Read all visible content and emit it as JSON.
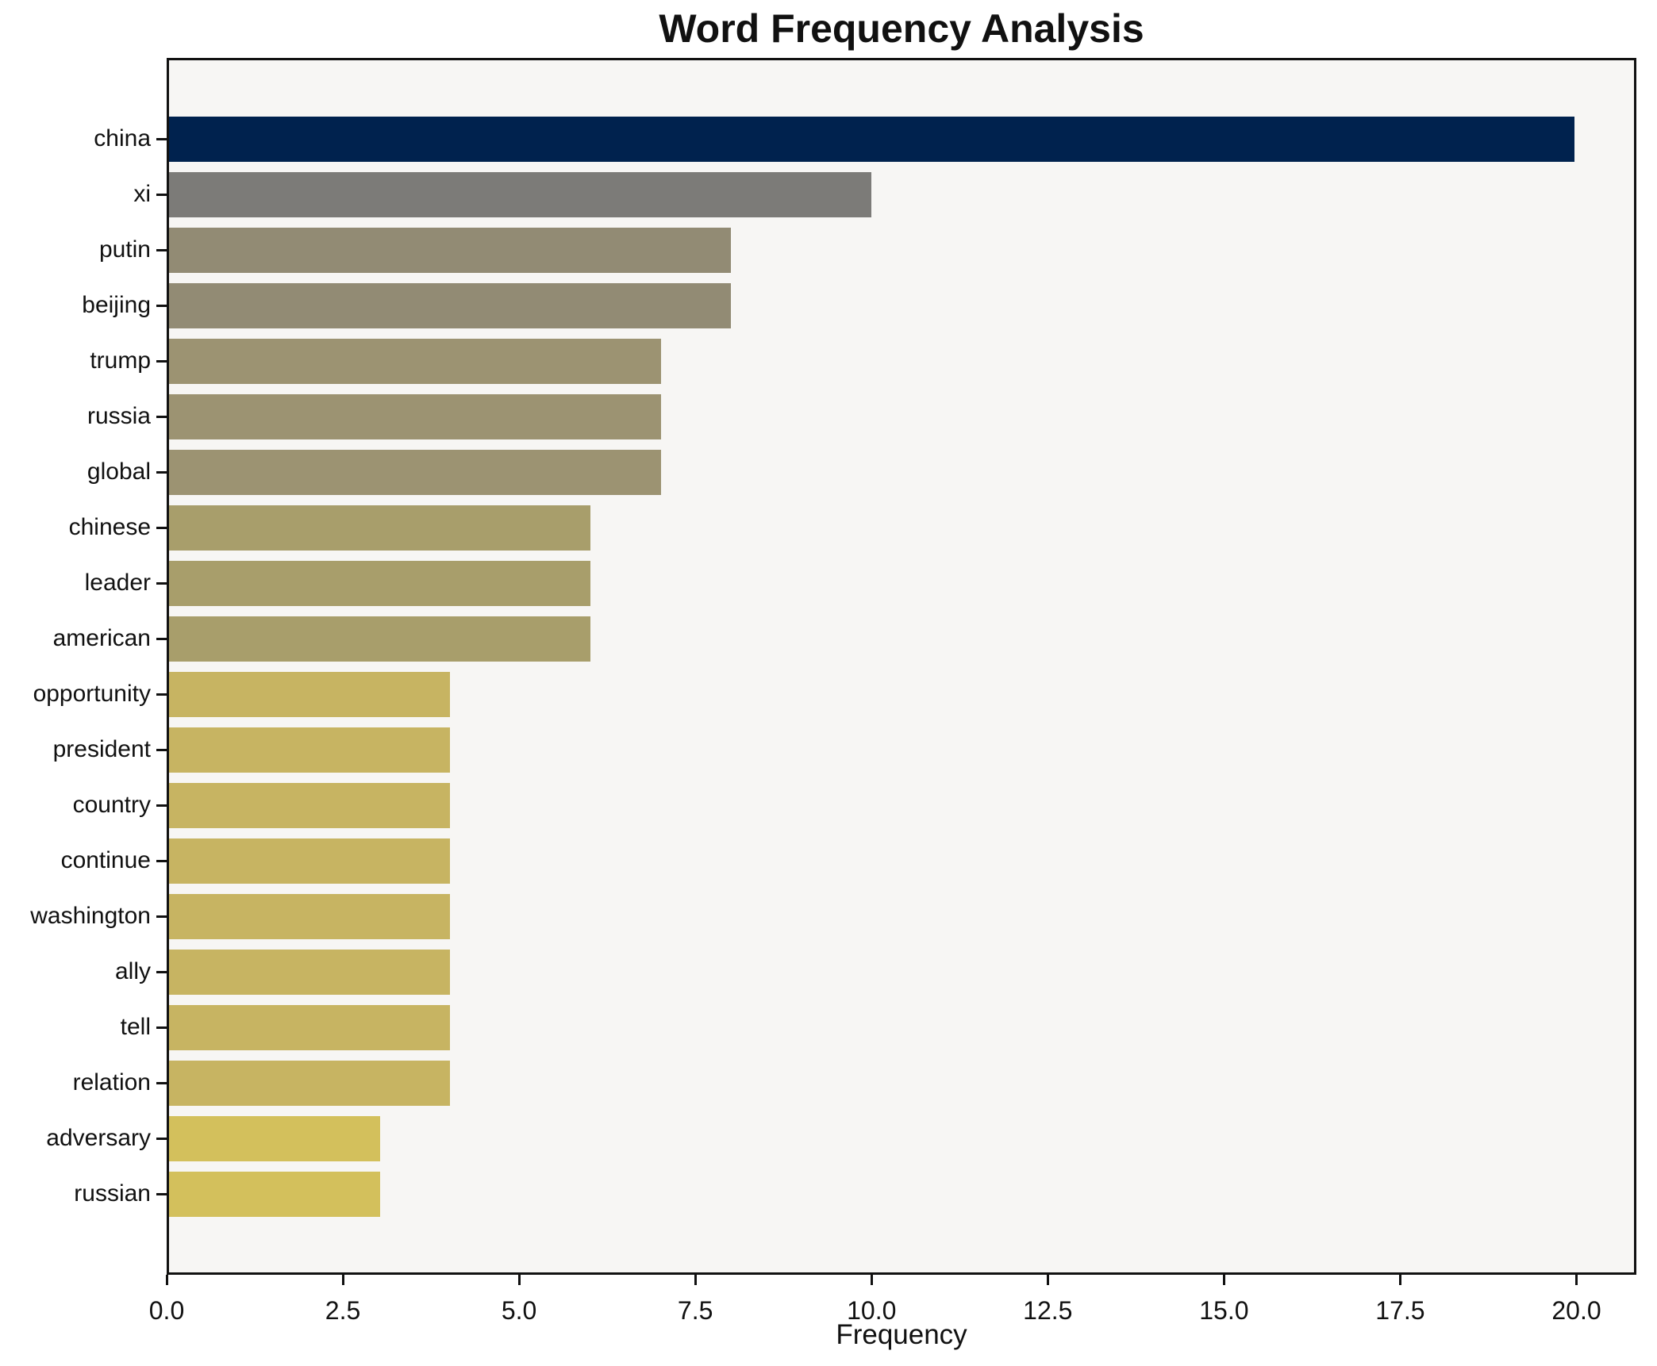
{
  "chart_data": {
    "type": "bar",
    "orientation": "horizontal",
    "title": "Word Frequency Analysis",
    "xlabel": "Frequency",
    "ylabel": "",
    "categories": [
      "china",
      "xi",
      "putin",
      "beijing",
      "trump",
      "russia",
      "global",
      "chinese",
      "leader",
      "american",
      "opportunity",
      "president",
      "country",
      "continue",
      "washington",
      "ally",
      "tell",
      "relation",
      "adversary",
      "russian"
    ],
    "values": [
      20,
      10,
      8,
      8,
      7,
      7,
      7,
      6,
      6,
      6,
      4,
      4,
      4,
      4,
      4,
      4,
      4,
      4,
      3,
      3
    ],
    "bar_colors": [
      "#00224e",
      "#7c7b78",
      "#928b74",
      "#928b74",
      "#9c9372",
      "#9c9372",
      "#9c9372",
      "#a89e6b",
      "#a89e6b",
      "#a89e6b",
      "#c7b462",
      "#c7b462",
      "#c7b462",
      "#c7b462",
      "#c7b462",
      "#c7b462",
      "#c7b462",
      "#c7b462",
      "#d3c05c",
      "#d3c05c"
    ],
    "x_ticks": [
      0,
      2.5,
      5,
      7.5,
      10,
      12.5,
      15,
      17.5,
      20
    ],
    "x_tick_labels": [
      "0.0",
      "2.5",
      "5.0",
      "7.5",
      "10.0",
      "12.5",
      "15.0",
      "17.5",
      "20.0"
    ],
    "xlim": [
      0,
      20.85
    ],
    "grid": false,
    "legend": null,
    "plot_bg": "#f7f6f4",
    "spine_color": "#111111",
    "text_color": "#111111"
  }
}
